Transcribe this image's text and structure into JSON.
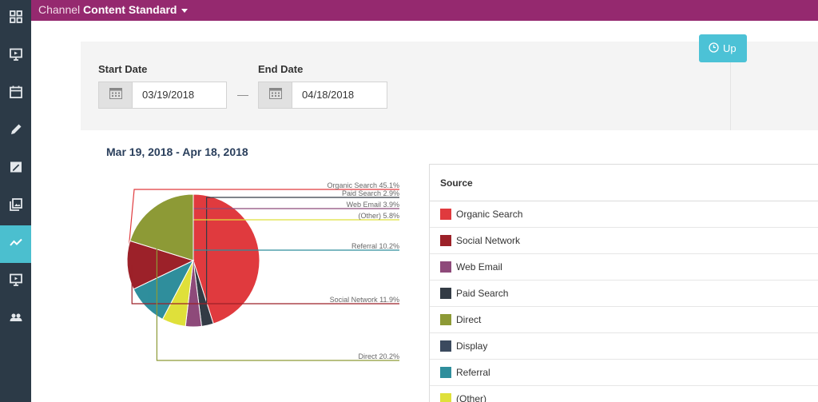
{
  "header": {
    "title_prefix": "Channel",
    "title_name": "Content Standard"
  },
  "sidebar": {
    "items": [
      {
        "icon": "dashboard-grid-icon",
        "active": false
      },
      {
        "icon": "presentation-icon",
        "active": false
      },
      {
        "icon": "calendar-icon",
        "active": false
      },
      {
        "icon": "pencil-icon",
        "active": false
      },
      {
        "icon": "edit-image-icon",
        "active": false
      },
      {
        "icon": "gallery-icon",
        "active": false
      },
      {
        "icon": "analytics-trend-icon",
        "active": true
      },
      {
        "icon": "monitor-icon",
        "active": false
      },
      {
        "icon": "users-icon",
        "active": false
      }
    ]
  },
  "filters": {
    "start_label": "Start Date",
    "start_value": "03/19/2018",
    "separator": "—",
    "end_label": "End Date",
    "end_value": "04/18/2018",
    "update_label": "Up"
  },
  "range_title": "Mar 19, 2018 - Apr 18, 2018",
  "chart_data": {
    "type": "pie",
    "slices": [
      {
        "label": "Organic Search",
        "value": 45.1,
        "color": "#e03a3e",
        "text": "Organic Search 45.1%"
      },
      {
        "label": "Paid Search",
        "value": 2.9,
        "color": "#333b45",
        "text": "Paid Search 2.9%"
      },
      {
        "label": "Web Email",
        "value": 3.9,
        "color": "#8e4a7a",
        "text": "Web Email 3.9%"
      },
      {
        "label": "(Other)",
        "value": 5.8,
        "color": "#dfe03a",
        "text": "(Other) 5.8%"
      },
      {
        "label": "Referral",
        "value": 10.2,
        "color": "#2f8e9c",
        "text": "Referral 10.2%"
      },
      {
        "label": "Social Network",
        "value": 11.9,
        "color": "#9c2129",
        "text": "Social Network 11.9%"
      },
      {
        "label": "Direct",
        "value": 20.2,
        "color": "#8d9a36",
        "text": "Direct 20.2%"
      }
    ]
  },
  "table": {
    "header": "Source",
    "rows": [
      {
        "label": "Organic Search",
        "color": "#e03a3e"
      },
      {
        "label": "Social Network",
        "color": "#9c2129"
      },
      {
        "label": "Web Email",
        "color": "#8e4a7a"
      },
      {
        "label": "Paid Search",
        "color": "#333b45"
      },
      {
        "label": "Direct",
        "color": "#8d9a36"
      },
      {
        "label": "Display",
        "color": "#3b4a5e"
      },
      {
        "label": "Referral",
        "color": "#2f8e9c"
      },
      {
        "label": "(Other)",
        "color": "#dfe03a"
      }
    ]
  }
}
